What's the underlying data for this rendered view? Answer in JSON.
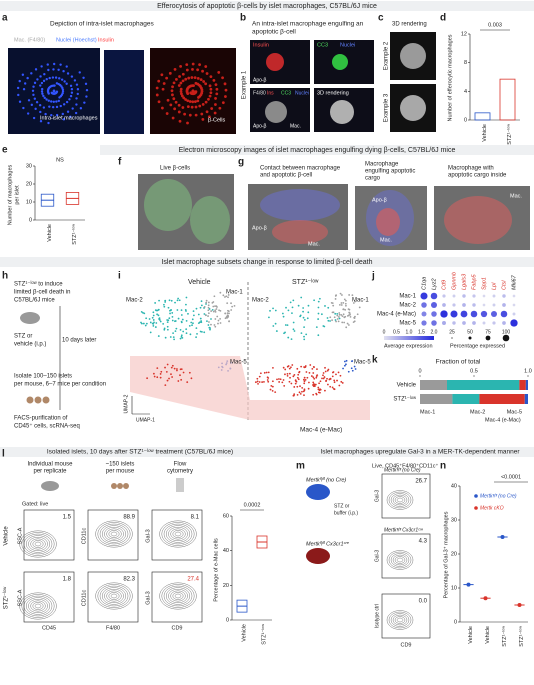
{
  "title_top": "Efferocytosis of apoptotic β-cells by islet macrophages, C57BL/6J mice",
  "a": {
    "label": "a",
    "title": "Depiction of intra-islet macrophages",
    "legend": [
      "Mac. (F4/80)",
      "Nuclei (Hoechst)",
      "Insulin"
    ],
    "annotations": [
      "Intra-islet macrophages",
      "β-Cells"
    ]
  },
  "b": {
    "label": "b",
    "title": [
      "An intra-islet macrophage engulfing an",
      "apoptotic β-cell"
    ],
    "row": "Example 1",
    "channels": [
      "Insulin",
      "CC3",
      "Nuclei"
    ],
    "channels2": [
      "F4/80",
      "Ins",
      "CC3",
      "Nuclei"
    ],
    "render": "3D rendering",
    "apo": "Apo-β",
    "mac": "Mac."
  },
  "c": {
    "label": "c",
    "title": "3D rendering",
    "rows": [
      "Example 2",
      "Example 3"
    ]
  },
  "d": {
    "label": "d",
    "y_label": "Number of efferocytic macrophages",
    "categories": [
      "Vehicle",
      "STZ¹⁻ˡᵒʷ"
    ],
    "values": [
      1,
      5.7
    ],
    "colors": [
      "#2a57c9",
      "#d9342b"
    ],
    "ylim": [
      0,
      12
    ],
    "yticks": [
      0,
      4,
      8,
      12
    ],
    "p_value": "0.003"
  },
  "e": {
    "label": "e",
    "y_label": [
      "Number of macrophages",
      "per islet"
    ],
    "categories": [
      "Vehicle",
      "STZ¹⁻ˡᵒʷ"
    ],
    "values": [
      11,
      12
    ],
    "colors": [
      "#2a57c9",
      "#d9342b"
    ],
    "ylim": [
      0,
      30
    ],
    "yticks": [
      0,
      10,
      20,
      30
    ],
    "p_value": "NS"
  },
  "em_title": "Electron microscopy images of islet macrophages engulfing dying β-cells, C57BL/6J mice",
  "f": {
    "label": "f",
    "title": "Live β-cells"
  },
  "g": {
    "label": "g",
    "titles": [
      [
        "Contact between macrophage",
        "and apoptotic β-cell"
      ],
      [
        "Macrophage",
        "engulfing apoptotic",
        "cargo"
      ],
      [
        "Macrophage with",
        "apoptotic cargo inside"
      ]
    ],
    "annotations": [
      "Apo-β",
      "Mac.",
      "Apo-β",
      "Mac.",
      "Mac."
    ]
  },
  "subsets_title": "Islet macrophage subsets change in response to limited β-cell death",
  "h": {
    "label": "h",
    "steps": [
      "STZ¹⁻ˡᵒʷ to induce",
      "limited β-cell death in",
      "C57BL/6J mice",
      "STZ or",
      "vehicle (i.p.)",
      "10 days later",
      "Isolate 100–150 islets",
      "per mouse, 6–7 mice per condition",
      "FACS-purification of",
      "CD45⁺ cells, scRNA-seq"
    ]
  },
  "i": {
    "label": "i",
    "conditions": [
      "Vehicle",
      "STZ¹⁻ˡᵒʷ"
    ],
    "clusters": [
      "Mac-2",
      "Mac-1",
      "Mac-5",
      "Mac-4 (e-Mac)"
    ],
    "axes": [
      "UMAP-1",
      "UMAP-2"
    ]
  },
  "j": {
    "label": "j",
    "genes": [
      "C1qa",
      "Lyz2",
      "Cd9",
      "Gpnmb",
      "Lgals3",
      "Fabp5",
      "Spp1",
      "Lpl",
      "Ctsl",
      "Mki67"
    ],
    "rows": [
      "Mac-1",
      "Mac-2",
      "Mac-4 (e-Mac)",
      "Mac-5"
    ],
    "avg_expression": [
      [
        1.8,
        1.6,
        0.3,
        0.2,
        0.4,
        0.3,
        0.1,
        0.2,
        0.4,
        0.1
      ],
      [
        1.2,
        1.4,
        0.5,
        0.3,
        0.5,
        0.4,
        0.1,
        0.2,
        0.5,
        0.1
      ],
      [
        1.0,
        1.2,
        1.9,
        1.8,
        1.7,
        1.6,
        1.5,
        1.4,
        1.6,
        0.2
      ],
      [
        1.1,
        1.2,
        0.6,
        0.4,
        0.5,
        0.5,
        0.2,
        0.3,
        0.5,
        1.9
      ]
    ],
    "legend_expression": "Average expression",
    "expression_ticks": [
      "0",
      "0.5",
      "1.0",
      "1.5",
      "2.0"
    ],
    "legend_percentage": "Percentage expressed",
    "percentage_ticks": [
      25,
      50,
      75,
      100
    ]
  },
  "k": {
    "label": "k",
    "title": "Fraction of total",
    "categories": [
      "Vehicle",
      "STZ¹⁻ˡᵒʷ"
    ],
    "series": [
      {
        "name": "Mac-1",
        "color": "#9a9a9a",
        "values": [
          0.25,
          0.3
        ]
      },
      {
        "name": "Mac-2",
        "color": "#2bb5b0",
        "values": [
          0.67,
          0.25
        ]
      },
      {
        "name": "Mac-4 (e-Mac)",
        "color": "#d9342b",
        "values": [
          0.06,
          0.42
        ]
      },
      {
        "name": "Mac-5",
        "color": "#2a57c9",
        "values": [
          0.02,
          0.03
        ]
      }
    ],
    "xlim": [
      0,
      1
    ],
    "xticks": [
      0,
      0.5,
      {
        "value": 1,
        "label": "1.0"
      }
    ]
  },
  "l": {
    "label": "l",
    "title": "Isolated islets, 10 days after STZ¹⁻ˡᵒʷ treatment (C57BL/6J mice)",
    "steps": [
      [
        "Individual mouse",
        "per replicate"
      ],
      [
        "~150 islets",
        "per mouse"
      ],
      [
        "Flow",
        "cytometry"
      ]
    ],
    "gated": "Gated: live",
    "rows": [
      "Vehicle",
      "STZ¹⁻ˡᵒʷ"
    ],
    "gates": [
      [
        "1.5",
        "88.9",
        "8.1"
      ],
      [
        "1.8",
        "82.3",
        "27.4"
      ]
    ],
    "axes": [
      "SSC-A",
      "CD45",
      "CD11c",
      "F4/80",
      "Gal-3",
      "CD9"
    ],
    "y_label": "Percentage of e-Mac cells",
    "categories": [
      "Vehicle",
      "STZ¹⁻ˡᵒʷ"
    ],
    "values": [
      8,
      45
    ],
    "colors": [
      "#2a57c9",
      "#d9342b"
    ],
    "ylim": [
      0,
      60
    ],
    "yticks": [
      0,
      20,
      40,
      60
    ],
    "p_value": "0.0002"
  },
  "mn_title": "Islet macrophages upregulate Gal-3 in a MER-TK-dependent manner",
  "m": {
    "label": "m",
    "gate": "Live, CD45⁺F4/80⁺CD11c⁺",
    "mice": [
      "Mertkᶠˡ/ᶠˡ (no Cre)",
      "Mertkᶠˡ/ᶠˡ Cx3cr1ᶜʳᵉ"
    ],
    "treatment": [
      "STZ or",
      "buffer (i.p.)"
    ],
    "plot_titles": [
      "Mertkᶠˡ/ᶠˡ (no Cre)",
      "Mertkᶠˡ/ᶠˡ Cx3cr1ᶜʳᵉ",
      ""
    ],
    "gates": [
      "26.7",
      "4.3",
      "0.0"
    ],
    "y_axes": [
      "Gal-3",
      "Gal-3",
      "Isotype ctrl"
    ],
    "x_axis": "CD9"
  },
  "n": {
    "label": "n",
    "y_label": "Percentage of Gal-3⁺ macrophages",
    "categories": [
      "Vehicle",
      "Vehicle",
      "STZ¹⁻ˡᵒʷ",
      "STZ¹⁻ˡᵒʷ"
    ],
    "values": [
      11,
      7,
      25,
      5
    ],
    "colors": [
      "#2a57c9",
      "#d9342b",
      "#2a57c9",
      "#d9342b"
    ],
    "ylim": [
      0,
      40
    ],
    "yticks": [
      0,
      10,
      20,
      30,
      40
    ],
    "p_value": "<0.0001",
    "legend": [
      {
        "name": "Mertkᶠˡ/ᶠˡ (no Cre)",
        "color": "#2a57c9"
      },
      {
        "name": "Mertk cKO",
        "color": "#d9342b"
      }
    ]
  }
}
